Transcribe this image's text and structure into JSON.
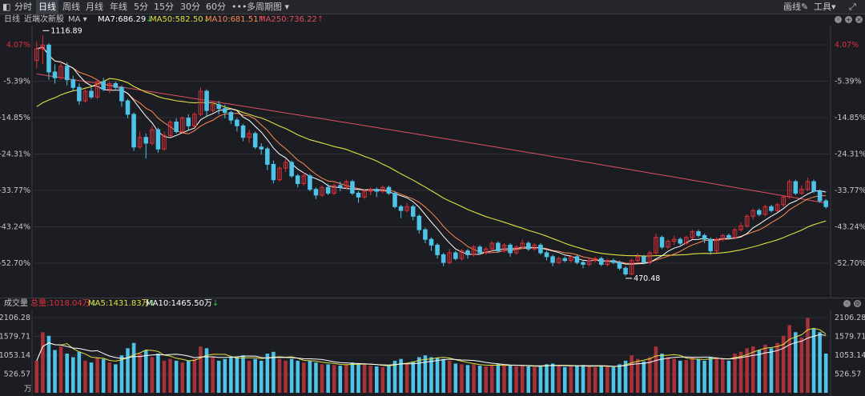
{
  "toolbar": {
    "tabs": [
      "分时",
      "日线",
      "周线",
      "月线",
      "年线",
      "5分",
      "15分",
      "30分",
      "60分"
    ],
    "active_tab": "日线",
    "more": "•••",
    "multi_period": "多周期图",
    "draw": "画线",
    "tools": "工具"
  },
  "info": {
    "period": "日线",
    "name": "近端次新股",
    "indicator": "MA",
    "ma7": "MA7:686.29",
    "ma50": "MA50:582.50",
    "ma10": "MA10:681.51",
    "ma250": "MA250:736.22"
  },
  "price_axis": {
    "labels": [
      "4.07%",
      "-5.39%",
      "-14.85%",
      "-24.31%",
      "-33.77%",
      "-43.24%",
      "-52.70%"
    ],
    "high_marker": "1116.89",
    "low_marker": "470.48"
  },
  "volume": {
    "title": "成交量",
    "total": "总量:1018.04万",
    "ma5": "MA5:1431.83万",
    "ma10": "MA10:1465.50万",
    "axis_labels": [
      "2106.28",
      "1579.71",
      "1053.14",
      "526.57"
    ],
    "unit": "万"
  },
  "colors": {
    "up": "#e0303a",
    "down": "#4fc3e8",
    "ma7": "#ffffff",
    "ma10": "#ff8a50",
    "ma50": "#e0e040",
    "ma250": "#e05060",
    "axis_pct": "#e0303a",
    "axis_neg": "#c8c8c8"
  },
  "chart_data": {
    "type": "candlestick",
    "y_range": [
      -56,
      8
    ],
    "volume_range": [
      0,
      2200
    ],
    "candles": [
      [
        0.0,
        3.0,
        -2.0,
        5.0,
        900
      ],
      [
        3.0,
        4.0,
        -1.0,
        6.5,
        1700
      ],
      [
        4.0,
        -3.0,
        -5.0,
        4.5,
        1600
      ],
      [
        -3.0,
        -4.5,
        -6.0,
        -1.0,
        1200
      ],
      [
        -4.5,
        -1.5,
        -5.0,
        0.0,
        1300
      ],
      [
        -1.5,
        -5.0,
        -6.5,
        -0.5,
        1100
      ],
      [
        -5.0,
        -7.0,
        -8.0,
        -4.0,
        1000
      ],
      [
        -7.0,
        -10.5,
        -11.5,
        -6.0,
        1150
      ],
      [
        -10.5,
        -8.0,
        -11.0,
        -7.5,
        900
      ],
      [
        -8.0,
        -9.5,
        -10.0,
        -7.0,
        850
      ],
      [
        -9.5,
        -5.5,
        -10.0,
        -5.0,
        1000
      ],
      [
        -5.5,
        -7.5,
        -8.0,
        -4.5,
        950
      ],
      [
        -7.5,
        -6.0,
        -8.5,
        -5.5,
        850
      ],
      [
        -6.0,
        -7.0,
        -7.5,
        -5.5,
        800
      ],
      [
        -7.0,
        -10.5,
        -12.0,
        -6.5,
        1050
      ],
      [
        -10.5,
        -14.0,
        -15.0,
        -10.0,
        1250
      ],
      [
        -14.0,
        -22.5,
        -23.5,
        -13.5,
        1400
      ],
      [
        -22.5,
        -20.0,
        -23.0,
        -18.5,
        1100
      ],
      [
        -20.0,
        -21.5,
        -25.5,
        -19.0,
        1200
      ],
      [
        -21.5,
        -18.0,
        -22.0,
        -17.0,
        1000
      ],
      [
        -18.0,
        -23.0,
        -24.0,
        -17.5,
        1100
      ],
      [
        -23.0,
        -19.5,
        -23.5,
        -18.5,
        900
      ],
      [
        -19.5,
        -16.0,
        -20.0,
        -15.5,
        950
      ],
      [
        -16.0,
        -18.5,
        -19.0,
        -15.0,
        900
      ],
      [
        -18.5,
        -15.0,
        -19.0,
        -14.5,
        850
      ],
      [
        -15.0,
        -17.0,
        -18.0,
        -14.0,
        900
      ],
      [
        -17.0,
        -14.0,
        -17.5,
        -13.5,
        950
      ],
      [
        -14.0,
        -8.0,
        -14.5,
        -7.0,
        1300
      ],
      [
        -8.0,
        -13.0,
        -14.5,
        -7.5,
        1250
      ],
      [
        -13.0,
        -11.5,
        -13.5,
        -10.5,
        1000
      ],
      [
        -11.5,
        -12.5,
        -14.0,
        -10.5,
        900
      ],
      [
        -12.5,
        -13.5,
        -15.0,
        -11.5,
        950
      ],
      [
        -13.5,
        -15.5,
        -16.5,
        -13.0,
        1000
      ],
      [
        -15.5,
        -17.0,
        -18.5,
        -15.0,
        1000
      ],
      [
        -17.0,
        -20.0,
        -21.0,
        -16.5,
        1050
      ],
      [
        -20.0,
        -19.0,
        -21.5,
        -18.0,
        900
      ],
      [
        -19.0,
        -22.5,
        -23.0,
        -18.5,
        950
      ],
      [
        -22.5,
        -23.0,
        -24.5,
        -21.5,
        900
      ],
      [
        -23.0,
        -27.0,
        -28.5,
        -22.5,
        1100
      ],
      [
        -27.0,
        -31.0,
        -32.0,
        -26.0,
        1150
      ],
      [
        -31.0,
        -28.0,
        -31.5,
        -27.5,
        950
      ],
      [
        -28.0,
        -26.5,
        -29.0,
        -25.5,
        900
      ],
      [
        -26.5,
        -30.0,
        -30.5,
        -26.0,
        950
      ],
      [
        -30.0,
        -32.0,
        -33.0,
        -29.5,
        900
      ],
      [
        -32.0,
        -30.0,
        -32.5,
        -29.0,
        850
      ],
      [
        -30.0,
        -33.5,
        -34.0,
        -29.5,
        900
      ],
      [
        -33.5,
        -35.0,
        -36.0,
        -33.0,
        850
      ],
      [
        -35.0,
        -33.0,
        -35.5,
        -32.5,
        800
      ],
      [
        -33.0,
        -34.5,
        -35.0,
        -32.0,
        800
      ],
      [
        -34.5,
        -32.5,
        -35.0,
        -32.0,
        780
      ],
      [
        -32.5,
        -33.0,
        -34.0,
        -31.5,
        760
      ],
      [
        -33.0,
        -31.5,
        -33.5,
        -31.0,
        800
      ],
      [
        -31.5,
        -34.5,
        -35.0,
        -31.0,
        850
      ],
      [
        -34.5,
        -35.5,
        -37.0,
        -34.0,
        820
      ],
      [
        -35.5,
        -34.0,
        -36.0,
        -33.5,
        800
      ],
      [
        -34.0,
        -33.5,
        -35.0,
        -33.0,
        760
      ],
      [
        -33.5,
        -34.0,
        -35.5,
        -33.0,
        740
      ],
      [
        -34.0,
        -33.0,
        -34.5,
        -32.5,
        720
      ],
      [
        -33.0,
        -34.5,
        -35.0,
        -32.5,
        760
      ],
      [
        -34.5,
        -38.0,
        -38.5,
        -34.0,
        900
      ],
      [
        -38.0,
        -39.0,
        -41.0,
        -37.5,
        950
      ],
      [
        -39.0,
        -38.0,
        -39.5,
        -37.0,
        820
      ],
      [
        -38.0,
        -40.5,
        -41.5,
        -37.5,
        880
      ],
      [
        -40.5,
        -44.0,
        -45.0,
        -40.0,
        1000
      ],
      [
        -44.0,
        -46.5,
        -47.5,
        -43.5,
        1050
      ],
      [
        -46.5,
        -48.0,
        -49.5,
        -46.0,
        1000
      ],
      [
        -48.0,
        -50.5,
        -51.5,
        -47.5,
        980
      ],
      [
        -50.5,
        -52.5,
        -53.5,
        -50.0,
        950
      ],
      [
        -52.5,
        -50.0,
        -53.0,
        -49.0,
        900
      ],
      [
        -50.0,
        -51.5,
        -52.0,
        -49.5,
        820
      ],
      [
        -51.5,
        -49.5,
        -52.0,
        -49.0,
        800
      ],
      [
        -49.5,
        -50.5,
        -51.5,
        -49.0,
        780
      ],
      [
        -50.5,
        -48.5,
        -51.0,
        -48.0,
        800
      ],
      [
        -48.5,
        -50.0,
        -50.5,
        -48.0,
        760
      ],
      [
        -50.0,
        -49.0,
        -50.5,
        -48.5,
        740
      ],
      [
        -49.0,
        -47.5,
        -50.0,
        -47.0,
        780
      ],
      [
        -47.5,
        -49.5,
        -50.0,
        -47.0,
        800
      ],
      [
        -49.5,
        -48.0,
        -50.0,
        -47.5,
        760
      ],
      [
        -48.0,
        -50.0,
        -51.0,
        -47.5,
        780
      ],
      [
        -50.0,
        -48.5,
        -50.5,
        -48.0,
        740
      ],
      [
        -48.5,
        -47.5,
        -49.0,
        -46.5,
        760
      ],
      [
        -47.5,
        -49.0,
        -49.5,
        -47.0,
        740
      ],
      [
        -49.0,
        -48.0,
        -49.5,
        -47.5,
        720
      ],
      [
        -48.0,
        -50.0,
        -50.5,
        -47.5,
        760
      ],
      [
        -50.0,
        -51.0,
        -52.0,
        -49.5,
        800
      ],
      [
        -51.0,
        -52.5,
        -53.5,
        -50.5,
        820
      ],
      [
        -52.5,
        -51.5,
        -53.0,
        -51.0,
        760
      ],
      [
        -51.5,
        -52.0,
        -52.5,
        -51.0,
        720
      ],
      [
        -52.0,
        -51.0,
        -52.5,
        -50.5,
        740
      ],
      [
        -51.0,
        -52.5,
        -53.0,
        -50.5,
        760
      ],
      [
        -52.5,
        -53.0,
        -54.0,
        -52.0,
        780
      ],
      [
        -53.0,
        -52.0,
        -53.5,
        -51.5,
        740
      ],
      [
        -52.0,
        -51.5,
        -52.5,
        -51.0,
        720
      ],
      [
        -51.5,
        -53.0,
        -53.5,
        -51.0,
        760
      ],
      [
        -53.0,
        -52.0,
        -53.5,
        -51.5,
        740
      ],
      [
        -52.0,
        -52.5,
        -53.0,
        -51.5,
        720
      ],
      [
        -52.5,
        -54.0,
        -54.5,
        -52.0,
        800
      ],
      [
        -54.0,
        -55.5,
        -56.0,
        -53.5,
        900
      ],
      [
        -55.5,
        -52.0,
        -55.8,
        -51.5,
        1050
      ],
      [
        -52.0,
        -51.0,
        -52.5,
        -50.0,
        950
      ],
      [
        -51.0,
        -52.5,
        -53.0,
        -50.5,
        880
      ],
      [
        -52.5,
        -50.0,
        -53.0,
        -49.5,
        1000
      ],
      [
        -50.0,
        -46.0,
        -50.5,
        -45.0,
        1300
      ],
      [
        -46.0,
        -48.5,
        -49.0,
        -45.5,
        1100
      ],
      [
        -48.5,
        -47.0,
        -49.0,
        -46.5,
        1000
      ],
      [
        -47.0,
        -46.5,
        -48.0,
        -45.5,
        950
      ],
      [
        -46.5,
        -47.5,
        -48.0,
        -46.0,
        900
      ],
      [
        -47.5,
        -46.0,
        -48.0,
        -45.5,
        920
      ],
      [
        -46.0,
        -44.5,
        -46.5,
        -44.0,
        1000
      ],
      [
        -44.5,
        -45.5,
        -46.0,
        -44.0,
        950
      ],
      [
        -45.5,
        -46.5,
        -47.5,
        -45.0,
        900
      ],
      [
        -46.5,
        -49.5,
        -50.5,
        -46.0,
        1000
      ],
      [
        -49.5,
        -46.5,
        -50.0,
        -46.0,
        1000
      ],
      [
        -46.5,
        -45.5,
        -47.0,
        -45.0,
        950
      ],
      [
        -45.5,
        -46.0,
        -46.5,
        -45.0,
        900
      ],
      [
        -46.0,
        -44.0,
        -46.5,
        -43.5,
        1100
      ],
      [
        -44.0,
        -43.0,
        -44.5,
        -42.0,
        1150
      ],
      [
        -43.0,
        -40.5,
        -43.5,
        -40.0,
        1250
      ],
      [
        -40.5,
        -39.0,
        -41.5,
        -38.5,
        1300
      ],
      [
        -39.0,
        -40.0,
        -40.5,
        -38.5,
        1200
      ],
      [
        -40.0,
        -38.0,
        -40.5,
        -37.5,
        1350
      ],
      [
        -38.0,
        -39.0,
        -39.5,
        -37.5,
        1250
      ],
      [
        -39.0,
        -37.5,
        -39.5,
        -37.0,
        1400
      ],
      [
        -37.5,
        -35.5,
        -38.0,
        -35.0,
        1600
      ],
      [
        -35.5,
        -31.5,
        -36.0,
        -31.0,
        1900
      ],
      [
        -31.5,
        -34.5,
        -35.0,
        -31.0,
        1700
      ],
      [
        -34.5,
        -33.5,
        -35.0,
        -32.5,
        1550
      ],
      [
        -33.5,
        -31.5,
        -34.0,
        -30.5,
        2100
      ],
      [
        -31.5,
        -34.0,
        -34.5,
        -31.0,
        1800
      ],
      [
        -34.0,
        -36.5,
        -37.0,
        -33.5,
        1700
      ],
      [
        -36.5,
        -38.0,
        -38.5,
        -36.0,
        1100
      ]
    ]
  }
}
